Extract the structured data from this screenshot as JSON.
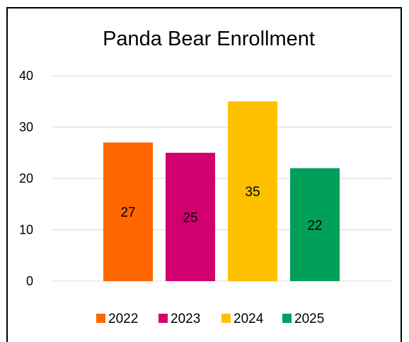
{
  "chart_data": {
    "type": "bar",
    "title": "Panda Bear Enrollment",
    "xlabel": "",
    "ylabel": "",
    "ylim": [
      0,
      40
    ],
    "yticks": [
      0,
      10,
      20,
      30,
      40
    ],
    "grid": true,
    "legend_position": "bottom",
    "categories": [
      "2022",
      "2023",
      "2024",
      "2025"
    ],
    "series": [
      {
        "name": "2022",
        "values": [
          27,
          null,
          null,
          null
        ],
        "color": "#FF6600"
      },
      {
        "name": "2023",
        "values": [
          null,
          25,
          null,
          null
        ],
        "color": "#D0006F"
      },
      {
        "name": "2024",
        "values": [
          null,
          null,
          35,
          null
        ],
        "color": "#FFC000"
      },
      {
        "name": "2025",
        "values": [
          null,
          null,
          null,
          22
        ],
        "color": "#00A05A"
      }
    ],
    "data_labels": true
  }
}
